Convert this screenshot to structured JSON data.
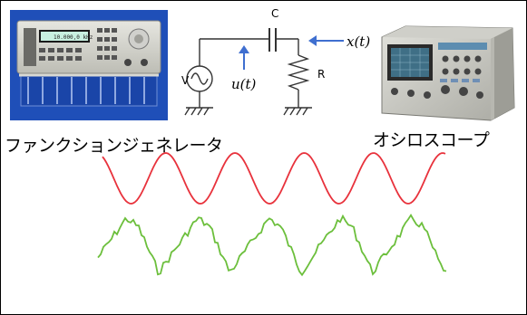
{
  "labels": {
    "function_generator": "ファンクションジェネレータ",
    "oscilloscope": "オシロスコープ",
    "generator_display": "10.000,0 kHz"
  },
  "circuit": {
    "capacitor": "C",
    "resistor": "R",
    "source": "V",
    "input_signal": "u(t)",
    "output_signal": "x(t)"
  },
  "colors": {
    "input_wave": "#e8323c",
    "output_wave": "#6cbf3c",
    "arrow": "#3f6fd0",
    "photo_bg": "#1f4fb8"
  },
  "waves": {
    "input": {
      "shape": "sine",
      "cycles": 5
    },
    "output": {
      "shape": "noisy-sawtooth",
      "cycles": 5
    }
  }
}
